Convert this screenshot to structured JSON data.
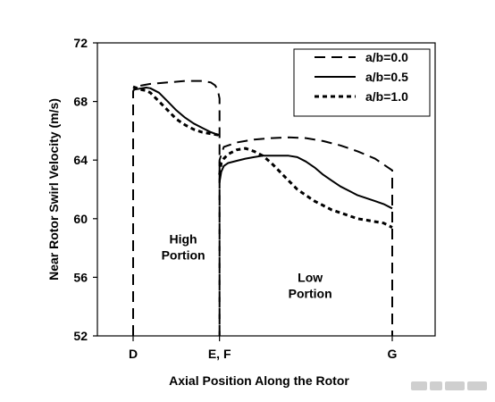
{
  "chart_data": {
    "type": "line",
    "title": "",
    "xlabel": "Axial Position Along the Rotor",
    "ylabel": "Near Rotor Swirl Velocity (m/s)",
    "ylim": [
      52,
      72
    ],
    "yticks": [
      "52",
      "56",
      "60",
      "64",
      "68",
      "72"
    ],
    "xlim": [
      0,
      3
    ],
    "xticks": [
      {
        "value": 0,
        "label": "D"
      },
      {
        "value": 1,
        "label": "E, F"
      },
      {
        "value": 3,
        "label": "G"
      }
    ],
    "grid": false,
    "legend_position": "top-right",
    "annotations": [
      {
        "lines": [
          "High",
          "Portion"
        ],
        "x": 0.58,
        "y": 58.3
      },
      {
        "lines": [
          "Low",
          "Portion"
        ],
        "x": 2.05,
        "y": 55.7
      }
    ],
    "series": [
      {
        "name": "a/b=0.0",
        "dash": "long-dash",
        "color": "#000000",
        "segments": [
          {
            "x": [
              0,
              0,
              0.03,
              0.1,
              0.2,
              0.3,
              0.4,
              0.5,
              0.6,
              0.7,
              0.8,
              0.9,
              0.95,
              0.98,
              0.99,
              1.0,
              1.0
            ],
            "y": [
              52,
              68.7,
              69.0,
              69.1,
              69.2,
              69.25,
              69.3,
              69.35,
              69.4,
              69.4,
              69.4,
              69.3,
              69.1,
              68.8,
              68.5,
              68.2,
              52
            ]
          },
          {
            "x": [
              1.0,
              1.0,
              1.05,
              1.1,
              1.2,
              1.4,
              1.6,
              1.8,
              2.0,
              2.2,
              2.4,
              2.6,
              2.8,
              2.9,
              3.0,
              3.0
            ],
            "y": [
              52,
              64.0,
              64.9,
              65.0,
              65.2,
              65.4,
              65.5,
              65.55,
              65.5,
              65.3,
              65.0,
              64.6,
              64.1,
              63.7,
              63.3,
              52
            ]
          }
        ]
      },
      {
        "name": "a/b=0.5",
        "dash": "solid",
        "color": "#000000",
        "segments": [
          {
            "x": [
              0,
              0.05,
              0.1,
              0.15,
              0.2,
              0.3,
              0.4,
              0.5,
              0.6,
              0.7,
              0.8,
              0.9,
              0.95,
              1.0
            ],
            "y": [
              68.8,
              68.85,
              68.9,
              68.95,
              68.9,
              68.6,
              68.0,
              67.4,
              66.9,
              66.5,
              66.2,
              65.9,
              65.8,
              65.7
            ]
          },
          {
            "x": [
              1.0,
              1.02,
              1.05,
              1.1,
              1.2,
              1.3,
              1.4,
              1.5,
              1.6,
              1.7,
              1.8,
              1.9,
              2.0,
              2.1,
              2.2,
              2.3,
              2.4,
              2.5,
              2.6,
              2.7,
              2.8,
              2.9,
              3.0
            ],
            "y": [
              62.5,
              63.2,
              63.6,
              63.8,
              63.95,
              64.1,
              64.2,
              64.3,
              64.3,
              64.3,
              64.3,
              64.2,
              63.9,
              63.5,
              63.0,
              62.6,
              62.2,
              61.9,
              61.6,
              61.4,
              61.2,
              61.0,
              60.7
            ]
          }
        ]
      },
      {
        "name": "a/b=1.0",
        "dash": "short-dash",
        "color": "#000000",
        "segments": [
          {
            "x": [
              0,
              0.05,
              0.1,
              0.15,
              0.2,
              0.3,
              0.4,
              0.5,
              0.6,
              0.7,
              0.8,
              0.9,
              1.0
            ],
            "y": [
              69.0,
              68.9,
              68.8,
              68.75,
              68.6,
              68.0,
              67.4,
              66.8,
              66.4,
              66.1,
              65.9,
              65.8,
              65.7
            ]
          },
          {
            "x": [
              1.0,
              1.02,
              1.05,
              1.1,
              1.2,
              1.3,
              1.4,
              1.5,
              1.6,
              1.7,
              1.8,
              1.9,
              2.0,
              2.1,
              2.2,
              2.3,
              2.4,
              2.5,
              2.6,
              2.7,
              2.8,
              2.9,
              3.0
            ],
            "y": [
              63.0,
              63.8,
              64.1,
              64.4,
              64.7,
              64.8,
              64.6,
              64.3,
              63.8,
              63.2,
              62.6,
              62.0,
              61.6,
              61.2,
              60.9,
              60.6,
              60.4,
              60.2,
              60.0,
              59.9,
              59.8,
              59.7,
              59.4
            ]
          }
        ]
      }
    ]
  }
}
